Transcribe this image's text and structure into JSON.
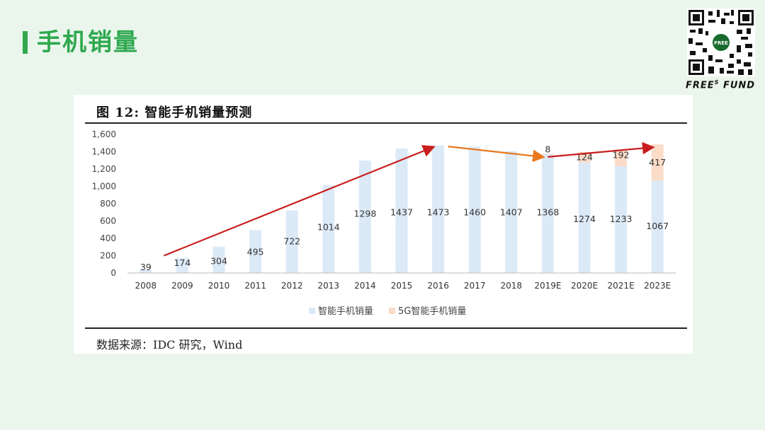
{
  "page": {
    "title": "手机销量",
    "accent_color": "#2fa84f",
    "brand": "FREE",
    "brand_sup": "S",
    "brand_tail": "FUND",
    "qr_icon": "qr-code-icon"
  },
  "figure": {
    "title": "图  12:  智能手机销量预测",
    "source": "数据来源：IDC 研究，Wind"
  },
  "chart_data": {
    "type": "bar",
    "stacked": true,
    "categories": [
      "2008",
      "2009",
      "2010",
      "2011",
      "2012",
      "2013",
      "2014",
      "2015",
      "2016",
      "2017",
      "2018",
      "2019E",
      "2020E",
      "2021E",
      "2023E"
    ],
    "series": [
      {
        "name": "智能手机销量",
        "color": "#dce9f7",
        "values": [
          39,
          174,
          304,
          495,
          722,
          1014,
          1298,
          1437,
          1473,
          1460,
          1407,
          1368,
          1274,
          1233,
          1067
        ]
      },
      {
        "name": "5G智能手机销量",
        "color": "#fbdcc8",
        "values": [
          null,
          null,
          null,
          null,
          null,
          null,
          null,
          null,
          null,
          null,
          null,
          8,
          124,
          192,
          417
        ]
      }
    ],
    "ylim": [
      0,
      1600
    ],
    "yticks": [
      "0",
      "200",
      "400",
      "600",
      "800",
      "1,000",
      "1,200",
      "1,400",
      "1,600"
    ],
    "grid": false,
    "legend": "bottom-center",
    "annotations": [
      {
        "type": "arrow",
        "color": "#c81e1e",
        "from": [
          "2009",
          200
        ],
        "to": [
          "2016",
          1450
        ]
      },
      {
        "type": "arrow",
        "color": "#e8781e",
        "from": [
          "2016",
          1460
        ],
        "to": [
          "2019E",
          1340
        ]
      },
      {
        "type": "arrow",
        "color": "#c81e1e",
        "from": [
          "2019E",
          1340
        ],
        "to": [
          "2023E",
          1450
        ]
      }
    ]
  }
}
